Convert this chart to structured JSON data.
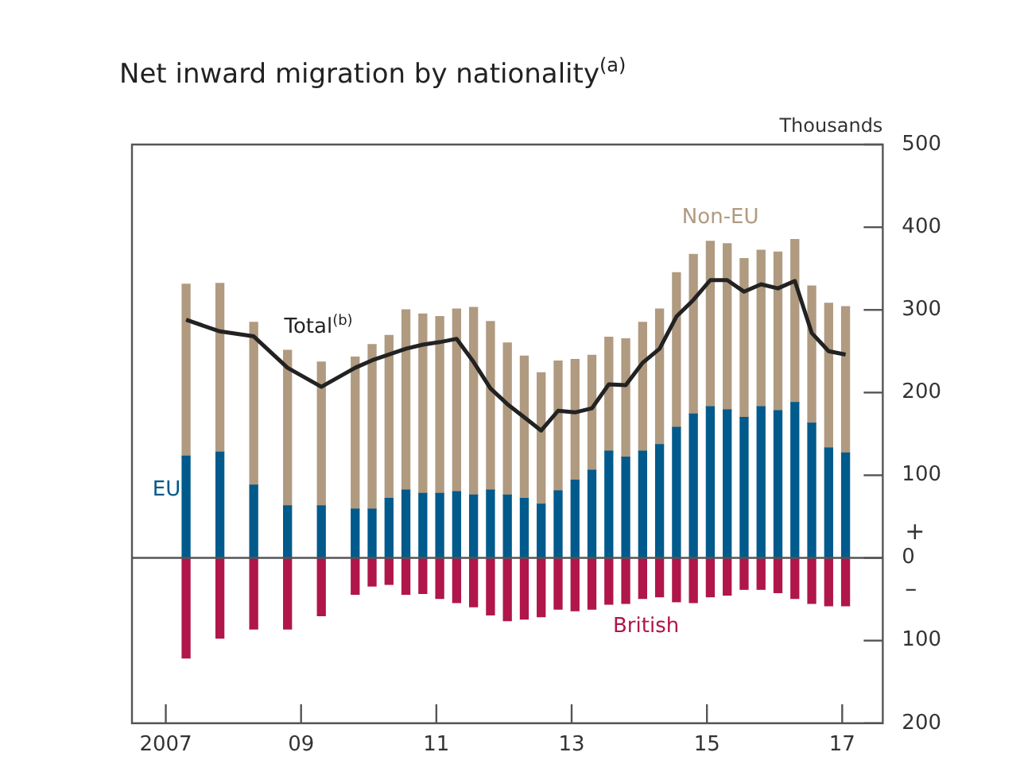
{
  "chart_data": {
    "type": "bar",
    "title": "Net inward migration by nationality$^{(a)}$",
    "ylabel": "Thousands",
    "stacked": true,
    "x": [
      2007.3,
      2007.8,
      2008.3,
      2008.8,
      2009.3,
      2009.8,
      2010.05,
      2010.3,
      2010.55,
      2010.8,
      2011.05,
      2011.3,
      2011.55,
      2011.8,
      2012.05,
      2012.3,
      2012.55,
      2012.8,
      2013.05,
      2013.3,
      2013.55,
      2013.8,
      2014.05,
      2014.3,
      2014.55,
      2014.8,
      2015.05,
      2015.3,
      2015.55,
      2015.8,
      2016.05,
      2016.3,
      2016.55,
      2016.8,
      2017.05
    ],
    "series": [
      {
        "name": "EU",
        "color": "#005a8c",
        "values": [
          123,
          128,
          88,
          63,
          63,
          59,
          59,
          72,
          82,
          78,
          78,
          80,
          76,
          82,
          76,
          72,
          65,
          81,
          94,
          106,
          129,
          122,
          129,
          137,
          158,
          174,
          183,
          179,
          170,
          183,
          178,
          188,
          163,
          133,
          127
        ]
      },
      {
        "name": "Non-EU",
        "color": "#b09a80",
        "values": [
          208,
          204,
          197,
          188,
          174,
          184,
          199,
          197,
          218,
          217,
          214,
          221,
          227,
          204,
          184,
          172,
          159,
          157,
          146,
          139,
          138,
          143,
          156,
          164,
          187,
          193,
          200,
          201,
          192,
          189,
          192,
          197,
          166,
          175,
          177
        ]
      },
      {
        "name": "British",
        "color": "#b0164a",
        "values": [
          -121,
          -97,
          -86,
          -86,
          -70,
          -44,
          -34,
          -32,
          -44,
          -43,
          -49,
          -54,
          -59,
          -69,
          -76,
          -74,
          -71,
          -62,
          -64,
          -62,
          -56,
          -55,
          -49,
          -47,
          -53,
          -54,
          -47,
          -45,
          -38,
          -38,
          -42,
          -49,
          -55,
          -58,
          -58
        ]
      },
      {
        "name": "Total$^{(b)}$",
        "type": "line",
        "color": "#222222",
        "values": [
          288,
          274,
          268,
          230,
          207,
          230,
          239,
          246,
          253,
          258,
          261,
          265,
          237,
          205,
          186,
          170,
          154,
          178,
          176,
          181,
          210,
          209,
          236,
          253,
          292,
          312,
          336,
          336,
          322,
          331,
          326,
          335,
          272,
          250,
          246
        ]
      }
    ],
    "xlim": [
      2006.5,
      2017.6
    ],
    "xticks": [
      {
        "value": 2007,
        "label": "2007"
      },
      {
        "value": 2009,
        "label": "09"
      },
      {
        "value": 2011,
        "label": "11"
      },
      {
        "value": 2013,
        "label": "13"
      },
      {
        "value": 2015,
        "label": "15"
      },
      {
        "value": 2017,
        "label": "17"
      }
    ],
    "ylim": [
      -200,
      500
    ],
    "yticks": [
      {
        "value": -200,
        "label": "200"
      },
      {
        "value": -100,
        "label": "100"
      },
      0,
      100,
      200,
      300,
      400,
      500
    ],
    "annotations": [
      "+",
      "–"
    ]
  }
}
